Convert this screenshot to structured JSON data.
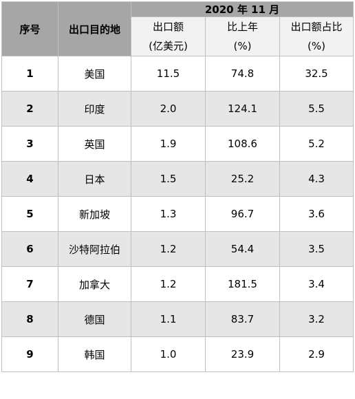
{
  "header": {
    "col_index": "序号",
    "col_destination": "出口目的地",
    "period": "2020 年 11 月",
    "col_export_value": [
      "出口额",
      "(亿美元)"
    ],
    "col_yoy": [
      "比上年",
      "(%)"
    ],
    "col_share": [
      "出口额占比",
      "(%)"
    ]
  },
  "rows": [
    {
      "idx": "1",
      "dest": "美国",
      "value": "11.5",
      "yoy": "74.8",
      "share": "32.5"
    },
    {
      "idx": "2",
      "dest": "印度",
      "value": "2.0",
      "yoy": "124.1",
      "share": "5.5"
    },
    {
      "idx": "3",
      "dest": "英国",
      "value": "1.9",
      "yoy": "108.6",
      "share": "5.2"
    },
    {
      "idx": "4",
      "dest": "日本",
      "value": "1.5",
      "yoy": "25.2",
      "share": "4.3"
    },
    {
      "idx": "5",
      "dest": "新加坡",
      "value": "1.3",
      "yoy": "96.7",
      "share": "3.6"
    },
    {
      "idx": "6",
      "dest": "沙特阿拉伯",
      "value": "1.2",
      "yoy": "54.4",
      "share": "3.5"
    },
    {
      "idx": "7",
      "dest": "加拿大",
      "value": "1.2",
      "yoy": "181.5",
      "share": "3.4"
    },
    {
      "idx": "8",
      "dest": "德国",
      "value": "1.1",
      "yoy": "83.7",
      "share": "3.2"
    },
    {
      "idx": "9",
      "dest": "韩国",
      "value": "1.0",
      "yoy": "23.9",
      "share": "2.9"
    }
  ]
}
